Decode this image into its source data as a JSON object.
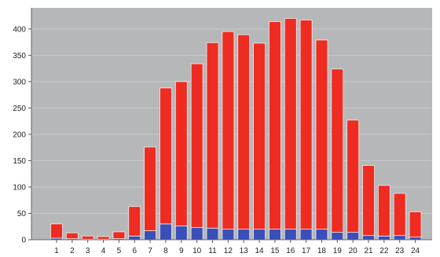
{
  "chart_data": {
    "type": "bar",
    "stacked": true,
    "categories": [
      "1",
      "2",
      "3",
      "4",
      "5",
      "6",
      "7",
      "8",
      "9",
      "10",
      "11",
      "12",
      "13",
      "14",
      "15",
      "16",
      "17",
      "18",
      "19",
      "20",
      "21",
      "22",
      "23",
      "24"
    ],
    "series": [
      {
        "color": "#3a4fb8",
        "values": [
          3,
          2,
          1,
          1,
          2,
          7,
          17,
          30,
          26,
          23,
          22,
          20,
          20,
          20,
          20,
          20,
          20,
          20,
          14,
          14,
          8,
          7,
          8,
          5
        ]
      },
      {
        "color": "#ee2c22",
        "values": [
          27,
          11,
          6,
          5,
          13,
          56,
          159,
          258,
          274,
          311,
          352,
          375,
          369,
          353,
          394,
          400,
          397,
          359,
          310,
          213,
          133,
          96,
          80,
          48
        ]
      }
    ],
    "totals": [
      30,
      13,
      7,
      6,
      15,
      63,
      176,
      288,
      300,
      334,
      374,
      395,
      389,
      373,
      414,
      420,
      417,
      379,
      324,
      227,
      141,
      103,
      88,
      53
    ],
    "ylim": [
      0,
      440
    ],
    "yticks": [
      0,
      50,
      100,
      150,
      200,
      250,
      300,
      350,
      400
    ],
    "grid": true,
    "title": "",
    "xlabel": "",
    "ylabel": "",
    "colors": {
      "plot_background": "#b6b7b9",
      "gridline": "#c8c9cb",
      "bar_outline": "#f4eeee"
    }
  }
}
